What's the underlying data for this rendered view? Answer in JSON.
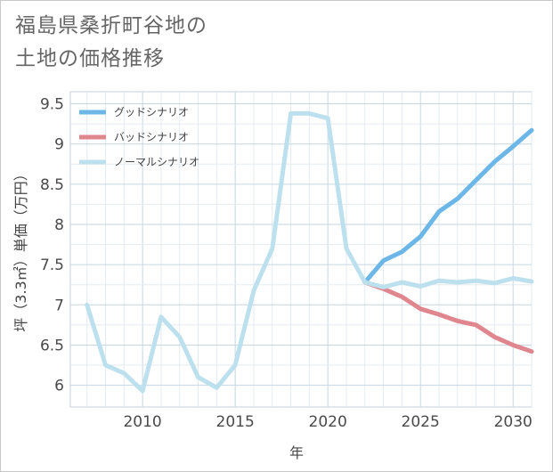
{
  "title": {
    "line1": "福島県桑折町谷地の",
    "line2": "土地の価格推移"
  },
  "chart_data": {
    "type": "line",
    "xlabel": "年",
    "ylabel": "坪（3.3㎡）単価（万円）",
    "xlim": [
      2006.1,
      2031
    ],
    "ylim": [
      5.73,
      9.65
    ],
    "xticks": [
      2010,
      2015,
      2020,
      2025,
      2030
    ],
    "yticks": [
      6,
      6.5,
      7,
      7.5,
      8,
      8.5,
      9,
      9.5
    ],
    "ytick_labels": [
      "6",
      "6.5",
      "7",
      "7.5",
      "8",
      "8.5",
      "9",
      "9.5"
    ],
    "grid": true,
    "legend_position": "top-left",
    "series": [
      {
        "name": "グッドシナリオ",
        "color": "#6cb6e8",
        "x": [
          2022,
          2023,
          2024,
          2025,
          2026,
          2027,
          2028,
          2029,
          2030,
          2031
        ],
        "values": [
          7.28,
          7.55,
          7.66,
          7.85,
          8.16,
          8.32,
          8.55,
          8.78,
          8.97,
          9.17
        ]
      },
      {
        "name": "バッドシナリオ",
        "color": "#e0868e",
        "x": [
          2022,
          2023,
          2024,
          2025,
          2026,
          2027,
          2028,
          2029,
          2030,
          2031
        ],
        "values": [
          7.28,
          7.2,
          7.1,
          6.95,
          6.88,
          6.8,
          6.75,
          6.6,
          6.5,
          6.42
        ]
      },
      {
        "name": "ノーマルシナリオ",
        "color": "#bde0ee",
        "x": [
          2007,
          2008,
          2009,
          2010,
          2011,
          2012,
          2013,
          2014,
          2015,
          2016,
          2017,
          2018,
          2019,
          2020,
          2021,
          2022,
          2023,
          2024,
          2025,
          2026,
          2027,
          2028,
          2029,
          2030,
          2031
        ],
        "values": [
          7.0,
          6.25,
          6.15,
          5.93,
          6.85,
          6.6,
          6.1,
          5.97,
          6.25,
          7.18,
          7.7,
          9.38,
          9.38,
          9.32,
          7.7,
          7.28,
          7.22,
          7.28,
          7.23,
          7.3,
          7.28,
          7.3,
          7.27,
          7.33,
          7.29
        ]
      }
    ]
  }
}
